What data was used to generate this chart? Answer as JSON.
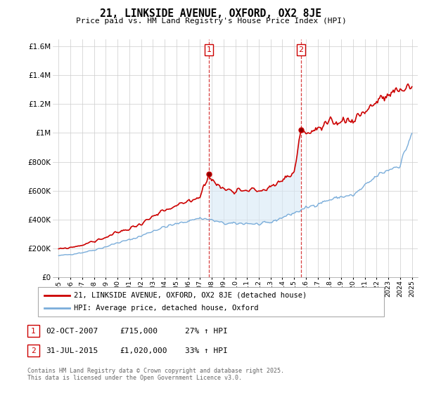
{
  "title": "21, LINKSIDE AVENUE, OXFORD, OX2 8JE",
  "subtitle": "Price paid vs. HM Land Registry's House Price Index (HPI)",
  "legend_label_red": "21, LINKSIDE AVENUE, OXFORD, OX2 8JE (detached house)",
  "legend_label_blue": "HPI: Average price, detached house, Oxford",
  "footnote": "Contains HM Land Registry data © Crown copyright and database right 2025.\nThis data is licensed under the Open Government Licence v3.0.",
  "transaction1_date": "02-OCT-2007",
  "transaction1_price": "£715,000",
  "transaction1_hpi": "27% ↑ HPI",
  "transaction2_date": "31-JUL-2015",
  "transaction2_price": "£1,020,000",
  "transaction2_hpi": "33% ↑ HPI",
  "color_red": "#cc0000",
  "color_blue": "#7aadda",
  "color_shading": "#d6e8f5",
  "vline1_x": 2007.75,
  "vline2_x": 2015.58,
  "ylim": [
    0,
    1650000
  ],
  "xlim_start": 1994.5,
  "xlim_end": 2025.5,
  "yticks": [
    0,
    200000,
    400000,
    600000,
    800000,
    1000000,
    1200000,
    1400000,
    1600000
  ],
  "ytick_labels": [
    "£0",
    "£200K",
    "£400K",
    "£600K",
    "£800K",
    "£1M",
    "£1.2M",
    "£1.4M",
    "£1.6M"
  ],
  "xticks": [
    1995,
    1996,
    1997,
    1998,
    1999,
    2000,
    2001,
    2002,
    2003,
    2004,
    2005,
    2006,
    2007,
    2008,
    2009,
    2010,
    2011,
    2012,
    2013,
    2014,
    2015,
    2016,
    2017,
    2018,
    2019,
    2020,
    2021,
    2022,
    2023,
    2024,
    2025
  ],
  "transaction1_x": 2007.75,
  "transaction1_y": 715000,
  "transaction2_x": 2015.58,
  "transaction2_y": 1020000
}
